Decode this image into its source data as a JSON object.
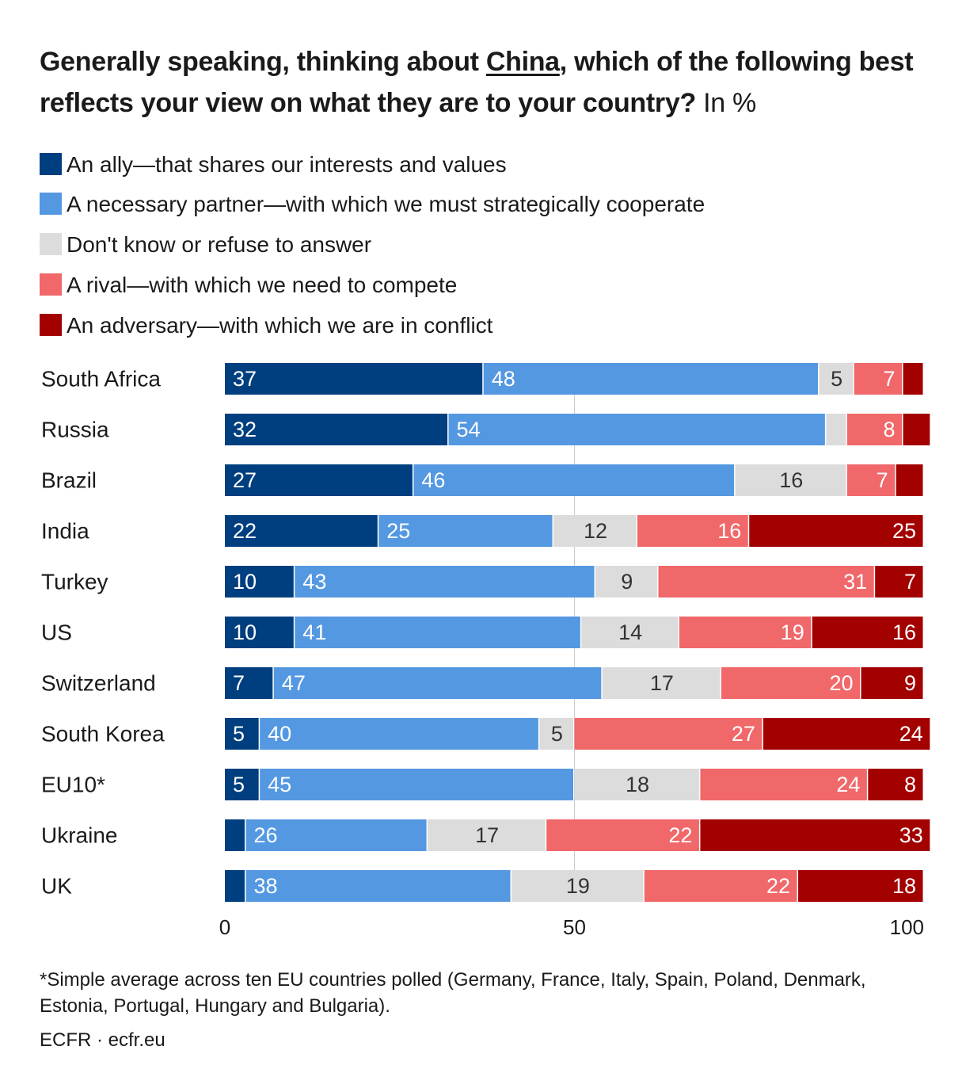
{
  "title": {
    "part1": "Generally speaking, thinking about ",
    "underlined": "China",
    "part2": ", which of the following best reflects your view on what they are to your country?",
    "unit": "In %"
  },
  "legend": [
    {
      "label": "An ally—that shares our interests and values",
      "color": "#003f7f"
    },
    {
      "label": "A necessary partner—with which we must strategically cooperate",
      "color": "#5498e1"
    },
    {
      "label": "Don't know or refuse to answer",
      "color": "#dcdcdc"
    },
    {
      "label": "A rival—with which we need to compete",
      "color": "#f0686a"
    },
    {
      "label": "An adversary—with which we are in conflict",
      "color": "#a30000"
    }
  ],
  "chart_data": {
    "type": "bar",
    "orientation": "horizontal",
    "stacked": true,
    "categories": [
      "South Africa",
      "Russia",
      "Brazil",
      "India",
      "Turkey",
      "US",
      "Switzerland",
      "South Korea",
      "EU10*",
      "Ukraine",
      "UK"
    ],
    "series": [
      {
        "name": "An ally—that shares our interests and values",
        "color": "#003f7f",
        "values": [
          37,
          32,
          27,
          22,
          10,
          10,
          7,
          5,
          5,
          3,
          3
        ],
        "labels": [
          "37",
          "32",
          "27",
          "22",
          "10",
          "10",
          "7",
          "5",
          "5",
          "",
          ""
        ]
      },
      {
        "name": "A necessary partner—with which we must strategically cooperate",
        "color": "#5498e1",
        "values": [
          48,
          54,
          46,
          25,
          43,
          41,
          47,
          40,
          45,
          26,
          38
        ],
        "labels": [
          "48",
          "54",
          "46",
          "25",
          "43",
          "41",
          "47",
          "40",
          "45",
          "26",
          "38"
        ]
      },
      {
        "name": "Don't know or refuse to answer",
        "color": "#dcdcdc",
        "values": [
          5,
          3,
          16,
          12,
          9,
          14,
          17,
          5,
          18,
          17,
          19
        ],
        "labels": [
          "5",
          "",
          "16",
          "12",
          "9",
          "14",
          "17",
          "5",
          "18",
          "17",
          "19"
        ]
      },
      {
        "name": "A rival—with which we need to compete",
        "color": "#f0686a",
        "values": [
          7,
          8,
          7,
          16,
          31,
          19,
          20,
          27,
          24,
          22,
          22
        ],
        "labels": [
          "7",
          "8",
          "7",
          "16",
          "31",
          "19",
          "20",
          "27",
          "24",
          "22",
          "22"
        ]
      },
      {
        "name": "An adversary—with which we are in conflict",
        "color": "#a30000",
        "values": [
          3,
          4,
          4,
          25,
          7,
          16,
          9,
          24,
          8,
          33,
          18
        ],
        "labels": [
          "",
          "",
          "",
          "25",
          "7",
          "16",
          "9",
          "24",
          "8",
          "33",
          "18"
        ]
      }
    ],
    "label_colors": [
      "#ffffff",
      "#ffffff",
      "#333333",
      "#ffffff",
      "#ffffff"
    ],
    "xlim": [
      0,
      100
    ],
    "xticks": [
      "0",
      "50",
      "100"
    ],
    "grid": false
  },
  "footnote": "*Simple average across ten EU countries polled (Germany, France, Italy, Spain, Poland, Denmark, Estonia, Portugal, Hungary and Bulgaria).",
  "source": "ECFR · ecfr.eu"
}
